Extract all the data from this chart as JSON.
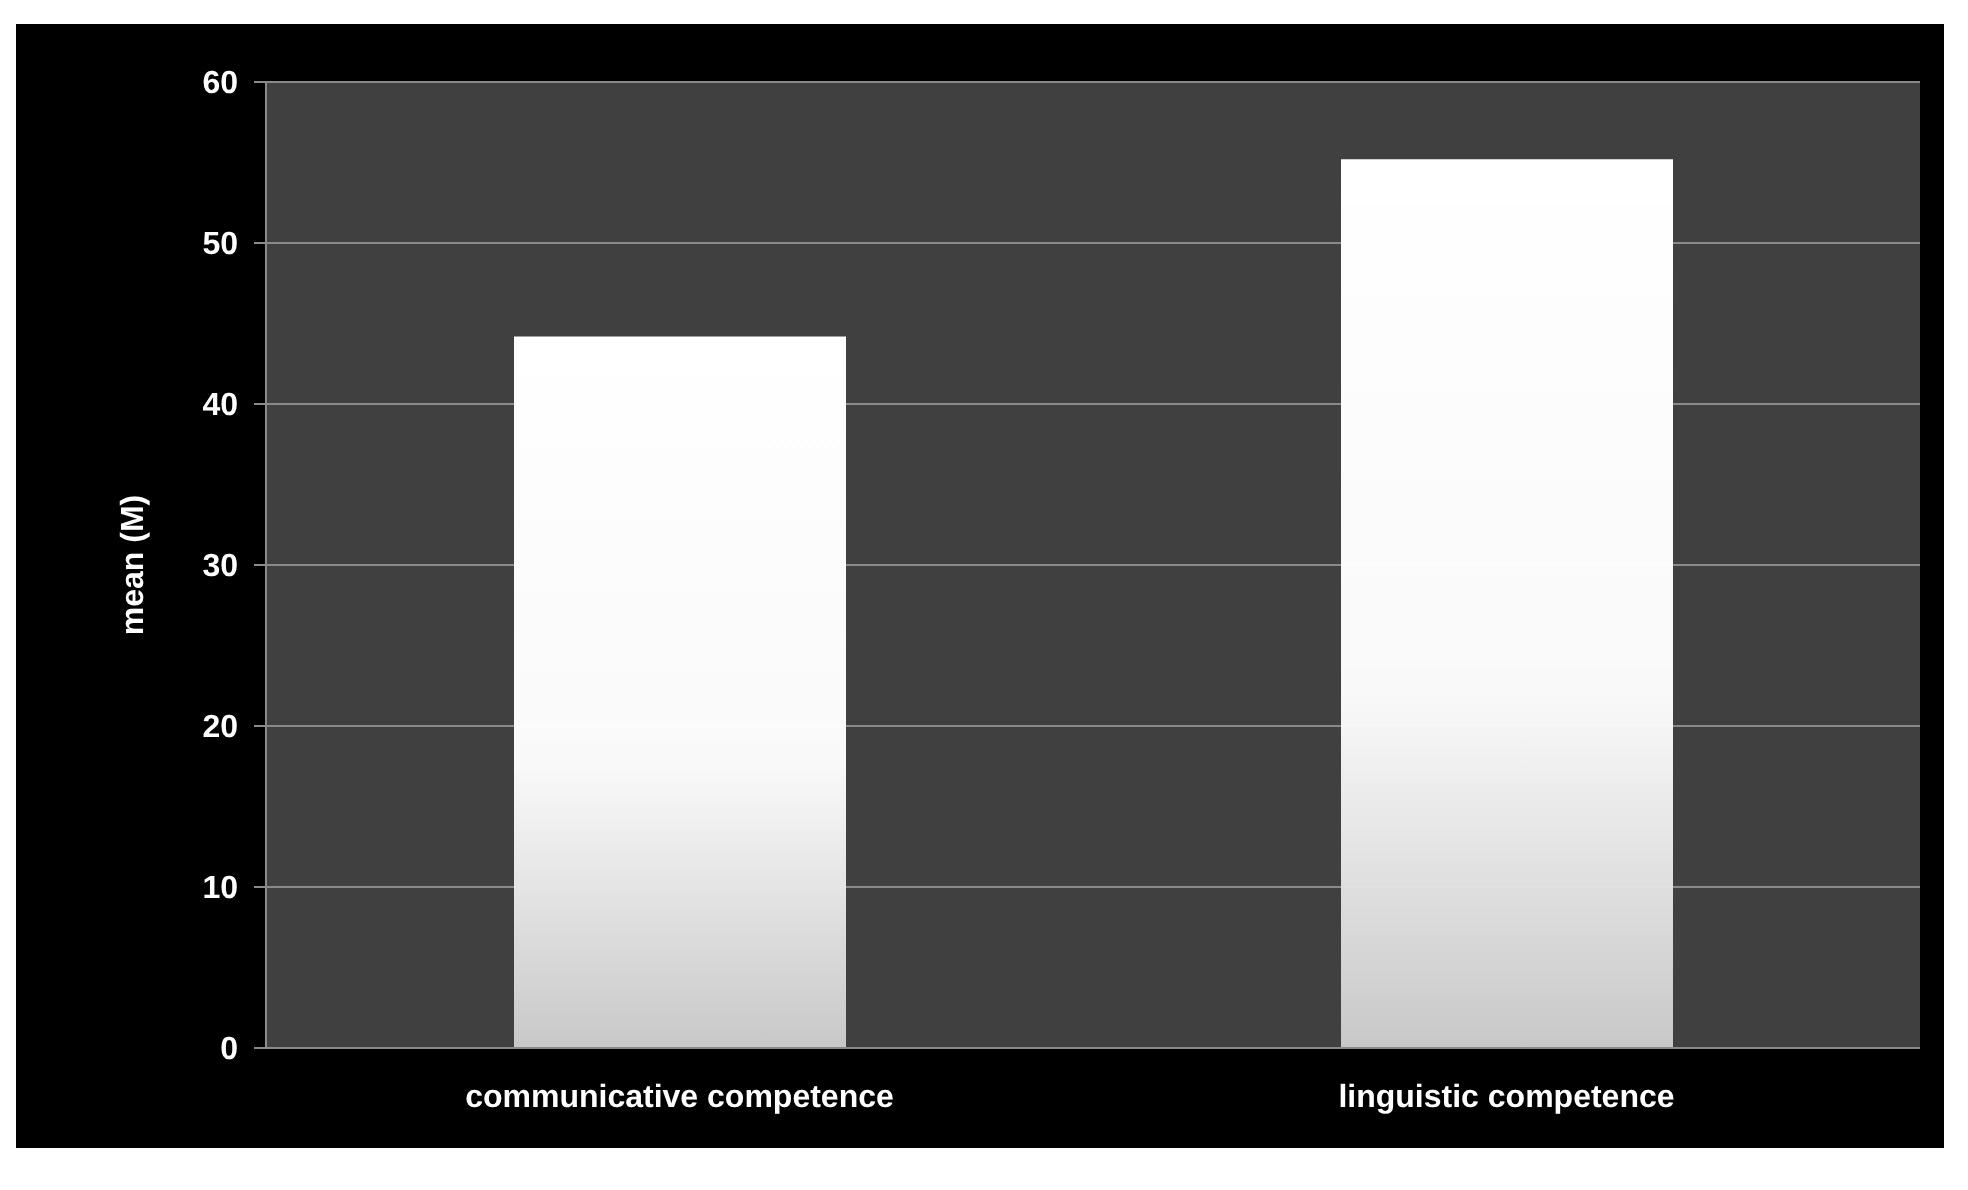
{
  "chart_data": {
    "type": "bar",
    "ylabel": "mean (M)",
    "categories": [
      "communicative competence",
      "linguistic competence"
    ],
    "values": [
      44.2,
      55.2
    ],
    "color": "#ffffff",
    "ylim": [
      0,
      60
    ],
    "yticks": [
      0,
      10,
      20,
      30,
      40,
      50,
      60
    ],
    "grid": "y",
    "legend": false
  }
}
